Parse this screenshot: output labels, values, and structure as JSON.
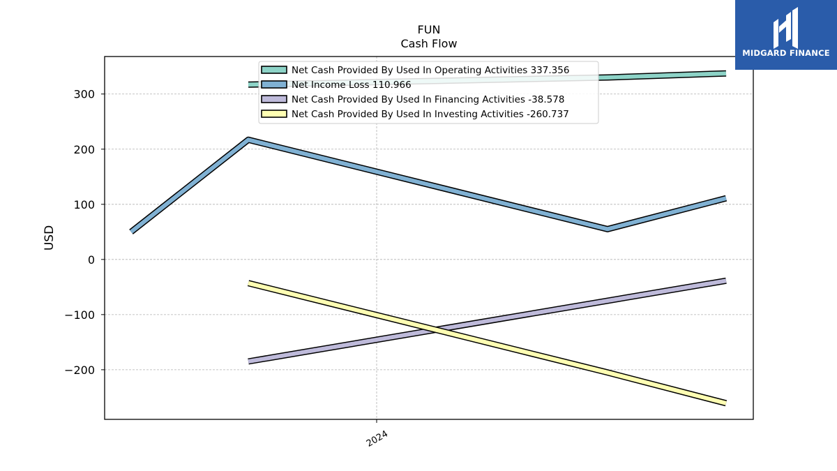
{
  "brand": {
    "name": "MIDGARD FINANCE",
    "bg_color": "#2a5caa",
    "fg_color": "#ffffff"
  },
  "chart_data": {
    "type": "line",
    "title": "FUN",
    "subtitle": "Cash Flow",
    "xlabel": "",
    "ylabel": "USD",
    "x": [
      "2023-09",
      "2023-12",
      "2024-03",
      "2024-06",
      "2024-09",
      "2024-12"
    ],
    "xticks": [
      "2024"
    ],
    "ylim": [
      -290,
      368
    ],
    "yticks": [
      -200,
      -100,
      0,
      100,
      200,
      300
    ],
    "ytick_labels": [
      "−200",
      "−100",
      "0",
      "100",
      "200",
      "300"
    ],
    "grid": true,
    "legend_position": "top-center",
    "series": [
      {
        "name": "Net Cash Provided By Used In Operating Activities",
        "legend_label": "Net Cash Provided By Used In Operating Activities  337.356",
        "color": "#8dd3c7",
        "values": [
          null,
          317,
          null,
          null,
          330,
          337.356
        ]
      },
      {
        "name": "Net Income Loss",
        "legend_label": "Net Income Loss  110.966",
        "color": "#80b1d3",
        "values": [
          50,
          217,
          null,
          null,
          55,
          110.966
        ]
      },
      {
        "name": "Net Cash Provided By Used In Financing Activities",
        "legend_label": "Net Cash Provided By Used In Financing Activities  -38.578",
        "color": "#bebada",
        "values": [
          null,
          -185,
          null,
          null,
          null,
          -38.578
        ]
      },
      {
        "name": "Net Cash Provided By Used In Investing Activities",
        "legend_label": "Net Cash Provided By Used In Investing Activities  -260.737",
        "color": "#ffffb3",
        "values": [
          null,
          -43,
          null,
          null,
          -205,
          -260.737
        ]
      }
    ]
  }
}
